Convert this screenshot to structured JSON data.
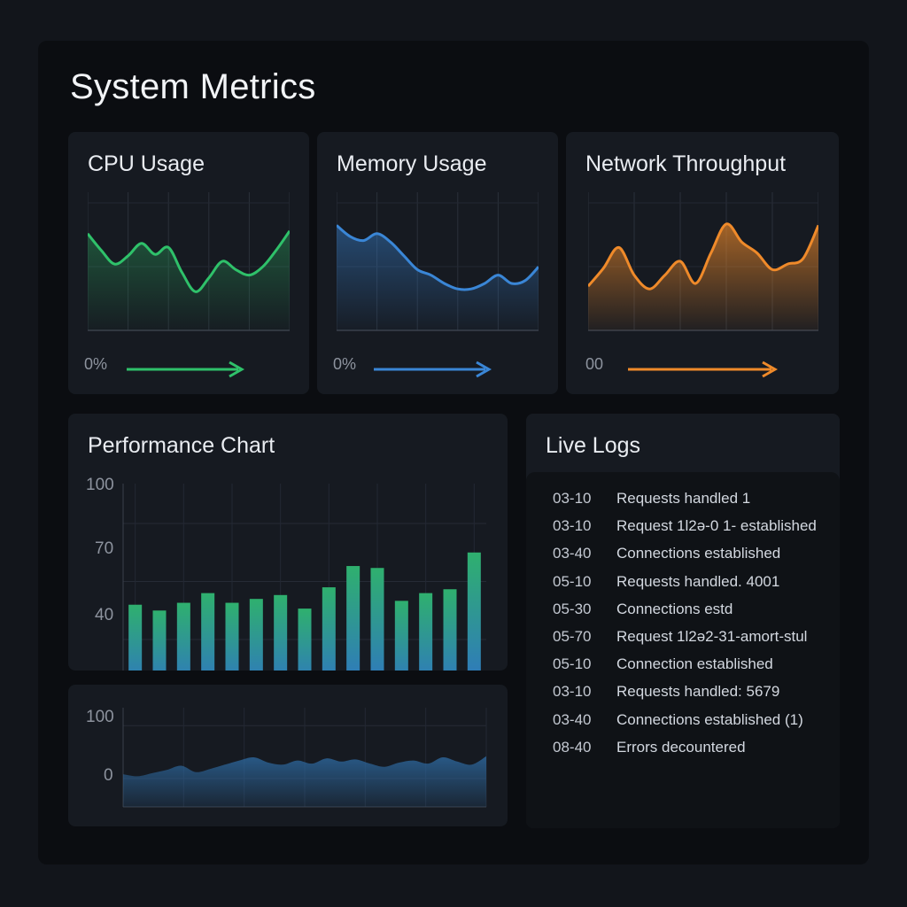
{
  "page": {
    "title": "System Metrics"
  },
  "colors": {
    "cpu": "#2fc16a",
    "memory": "#3a86d6",
    "network": "#ef8a2a",
    "bar_top": "#2fb06e",
    "bar_bottom": "#2f74c4",
    "area": "#2f6ea8"
  },
  "cards": {
    "cpu": {
      "title": "CPU Usage",
      "start_label": "0%",
      "values": [
        70,
        58,
        48,
        54,
        63,
        55,
        60,
        42,
        28,
        38,
        50,
        44,
        40,
        46,
        58,
        72
      ]
    },
    "memory": {
      "title": "Memory Usage",
      "start_label": "0%",
      "values": [
        76,
        68,
        65,
        70,
        64,
        54,
        44,
        40,
        34,
        30,
        30,
        34,
        40,
        34,
        36,
        46
      ]
    },
    "network": {
      "title": "Network Throughput",
      "start_label": "00",
      "values": [
        32,
        45,
        60,
        40,
        30,
        40,
        50,
        34,
        56,
        77,
        64,
        56,
        44,
        48,
        52,
        76
      ]
    }
  },
  "performance": {
    "title": "Performance Chart",
    "chart_data": {
      "type": "bar",
      "title": "Performance Chart",
      "yticks": [
        "100",
        "70",
        "40"
      ],
      "ylim": [
        13,
        100
      ],
      "values": [
        58,
        55,
        59,
        64,
        59,
        61,
        63,
        56,
        67,
        78,
        77,
        60,
        64,
        66,
        85
      ]
    }
  },
  "area_chart": {
    "chart_data": {
      "type": "area",
      "yticks": [
        "100",
        "0"
      ],
      "ylim": [
        -54,
        134
      ],
      "values": [
        8,
        4,
        10,
        16,
        24,
        12,
        18,
        26,
        34,
        40,
        30,
        26,
        34,
        28,
        38,
        32,
        36,
        28,
        22,
        30,
        34,
        28,
        40,
        32,
        26,
        42
      ]
    }
  },
  "logs": {
    "title": "Live Logs",
    "entries": [
      {
        "time": "03-10",
        "message": "Requests handled 1"
      },
      {
        "time": "03-10",
        "message": "Request 1l2ə-0 1- established"
      },
      {
        "time": "03-40",
        "message": "Connections established"
      },
      {
        "time": "05-10",
        "message": "Requests handled. 4001"
      },
      {
        "time": "05-30",
        "message": "Connections estd"
      },
      {
        "time": "05-70",
        "message": "Request 1l2ə2-31-amort-stul"
      },
      {
        "time": "05-10",
        "message": "Connection established"
      },
      {
        "time": "03-10",
        "message": "Requests handled: 5679"
      },
      {
        "time": "03-40",
        "message": "Connections established (1)"
      },
      {
        "time": "08-40",
        "message": "Errors decountered"
      }
    ]
  }
}
